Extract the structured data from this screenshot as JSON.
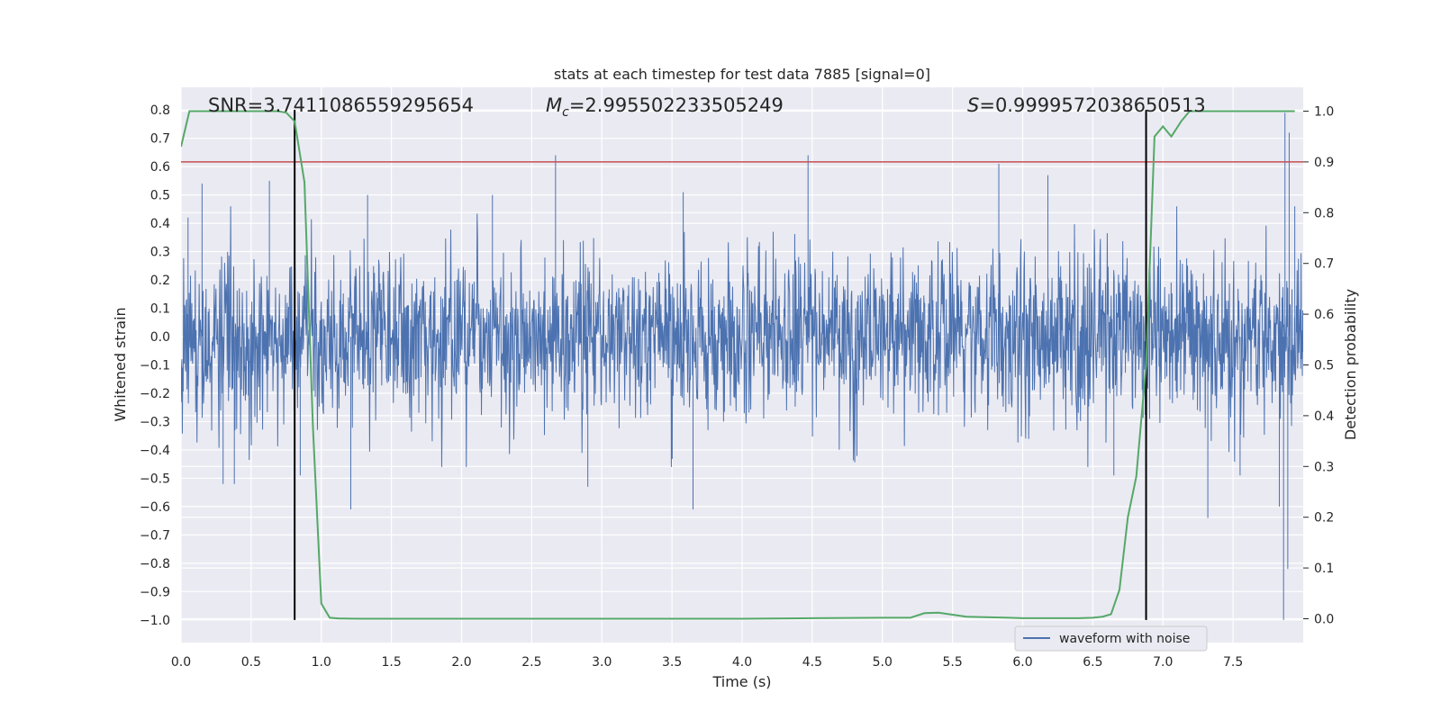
{
  "chart_data": {
    "type": "line",
    "title": "stats at each timestep for test data 7885 [signal=0]",
    "xlabel": "Time (s)",
    "ylabel_left": "Whitened strain",
    "ylabel_right": "Detection probability",
    "xlim": [
      0,
      8
    ],
    "ylim_left": [
      -1.08,
      0.88
    ],
    "ylim_right": [
      -0.047,
      1.047
    ],
    "x_ticks": [
      0.0,
      0.5,
      1.0,
      1.5,
      2.0,
      2.5,
      3.0,
      3.5,
      4.0,
      4.5,
      5.0,
      5.5,
      6.0,
      6.5,
      7.0,
      7.5
    ],
    "x_tick_labels": [
      "0.0",
      "0.5",
      "1.0",
      "1.5",
      "2.0",
      "2.5",
      "3.0",
      "3.5",
      "4.0",
      "4.5",
      "5.0",
      "5.5",
      "6.0",
      "6.5",
      "7.0",
      "7.5"
    ],
    "y_left_ticks": [
      0.8,
      0.7,
      0.6,
      0.5,
      0.4,
      0.3,
      0.2,
      0.1,
      0.0,
      -0.1,
      -0.2,
      -0.3,
      -0.4,
      -0.5,
      -0.6,
      -0.7,
      -0.8,
      -0.9,
      -1.0
    ],
    "y_left_tick_labels": [
      "0.8",
      "0.7",
      "0.6",
      "0.5",
      "0.4",
      "0.3",
      "0.2",
      "0.1",
      "0.0",
      "−0.1",
      "−0.2",
      "−0.3",
      "−0.4",
      "−0.5",
      "−0.6",
      "−0.7",
      "−0.8",
      "−0.9",
      "−1.0"
    ],
    "y_right_ticks": [
      1.0,
      0.9,
      0.8,
      0.7,
      0.6,
      0.5,
      0.4,
      0.3,
      0.2,
      0.1,
      0.0
    ],
    "y_right_tick_labels": [
      "1.0",
      "0.9",
      "0.8",
      "0.7",
      "0.6",
      "0.5",
      "0.4",
      "0.3",
      "0.2",
      "0.1",
      "0.0"
    ],
    "grid": true,
    "legend": {
      "position": "lower-right",
      "entries": [
        "waveform with noise"
      ]
    },
    "annotations": {
      "snr": "SNR=3.7411086559295654",
      "mc_symbol": "M",
      "mc_sub": "c",
      "mc_value": "=2.995502233505249",
      "s_symbol": "S",
      "s_value": "=0.9999572038650513"
    },
    "threshold_line": {
      "axis": "right",
      "y": 0.9,
      "color": "#c44e52"
    },
    "vertical_lines": {
      "x": [
        0.81,
        6.88
      ],
      "y_range_left": [
        -1.0,
        0.8
      ],
      "color": "#000000"
    },
    "series": [
      {
        "name": "waveform with noise",
        "axis": "left",
        "color": "#4c72b0",
        "description_type": "noise",
        "x_range": [
          0,
          8
        ],
        "typical_amplitude": 0.24,
        "spikes": [
          {
            "x": 0.05,
            "y": 0.42
          },
          {
            "x": 0.15,
            "y": 0.54
          },
          {
            "x": 0.3,
            "y": -0.52
          },
          {
            "x": 0.38,
            "y": -0.52
          },
          {
            "x": 0.63,
            "y": 0.55
          },
          {
            "x": 0.85,
            "y": -0.49
          },
          {
            "x": 1.21,
            "y": -0.61
          },
          {
            "x": 1.33,
            "y": 0.5
          },
          {
            "x": 2.22,
            "y": 0.5
          },
          {
            "x": 2.67,
            "y": 0.64
          },
          {
            "x": 2.9,
            "y": -0.53
          },
          {
            "x": 3.65,
            "y": -0.61
          },
          {
            "x": 3.58,
            "y": 0.51
          },
          {
            "x": 4.47,
            "y": 0.64
          },
          {
            "x": 5.83,
            "y": 0.61
          },
          {
            "x": 6.18,
            "y": 0.57
          },
          {
            "x": 6.65,
            "y": -0.49
          },
          {
            "x": 7.32,
            "y": -0.64
          },
          {
            "x": 7.55,
            "y": -0.49
          },
          {
            "x": 7.83,
            "y": -0.6
          },
          {
            "x": 7.86,
            "y": -1.0
          },
          {
            "x": 7.87,
            "y": 0.79
          },
          {
            "x": 7.89,
            "y": -0.82
          },
          {
            "x": 7.9,
            "y": 0.72
          },
          {
            "x": 7.94,
            "y": 0.46
          }
        ]
      },
      {
        "name": "detection probability",
        "axis": "right",
        "color": "#55a868",
        "x": [
          0.0,
          0.06,
          0.13,
          0.19,
          0.25,
          0.31,
          0.38,
          0.44,
          0.5,
          0.56,
          0.63,
          0.69,
          0.75,
          0.81,
          0.88,
          0.94,
          1.0,
          1.06,
          1.13,
          1.2,
          1.3,
          1.5,
          2.0,
          3.0,
          4.0,
          4.5,
          5.0,
          5.2,
          5.3,
          5.4,
          5.6,
          5.9,
          6.0,
          6.2,
          6.4,
          6.5,
          6.57,
          6.63,
          6.69,
          6.75,
          6.81,
          6.88,
          6.94,
          7.0,
          7.06,
          7.13,
          7.19,
          7.25,
          7.38,
          7.5,
          7.63,
          7.75,
          7.88,
          7.94
        ],
        "y": [
          0.93,
          1.0,
          1.0,
          1.0,
          1.0,
          1.0,
          1.0,
          1.0,
          1.0,
          1.0,
          1.0,
          1.0,
          0.997,
          0.98,
          0.86,
          0.38,
          0.03,
          0.002,
          0.0005,
          0.0002,
          0.0,
          0.0,
          0.0,
          0.0,
          0.0,
          0.001,
          0.002,
          0.002,
          0.011,
          0.012,
          0.004,
          0.002,
          0.001,
          0.001,
          0.001,
          0.002,
          0.004,
          0.009,
          0.057,
          0.2,
          0.28,
          0.5,
          0.95,
          0.97,
          0.95,
          0.98,
          1.0,
          1.0,
          1.0,
          1.0,
          1.0,
          1.0,
          1.0,
          1.0
        ]
      }
    ]
  }
}
